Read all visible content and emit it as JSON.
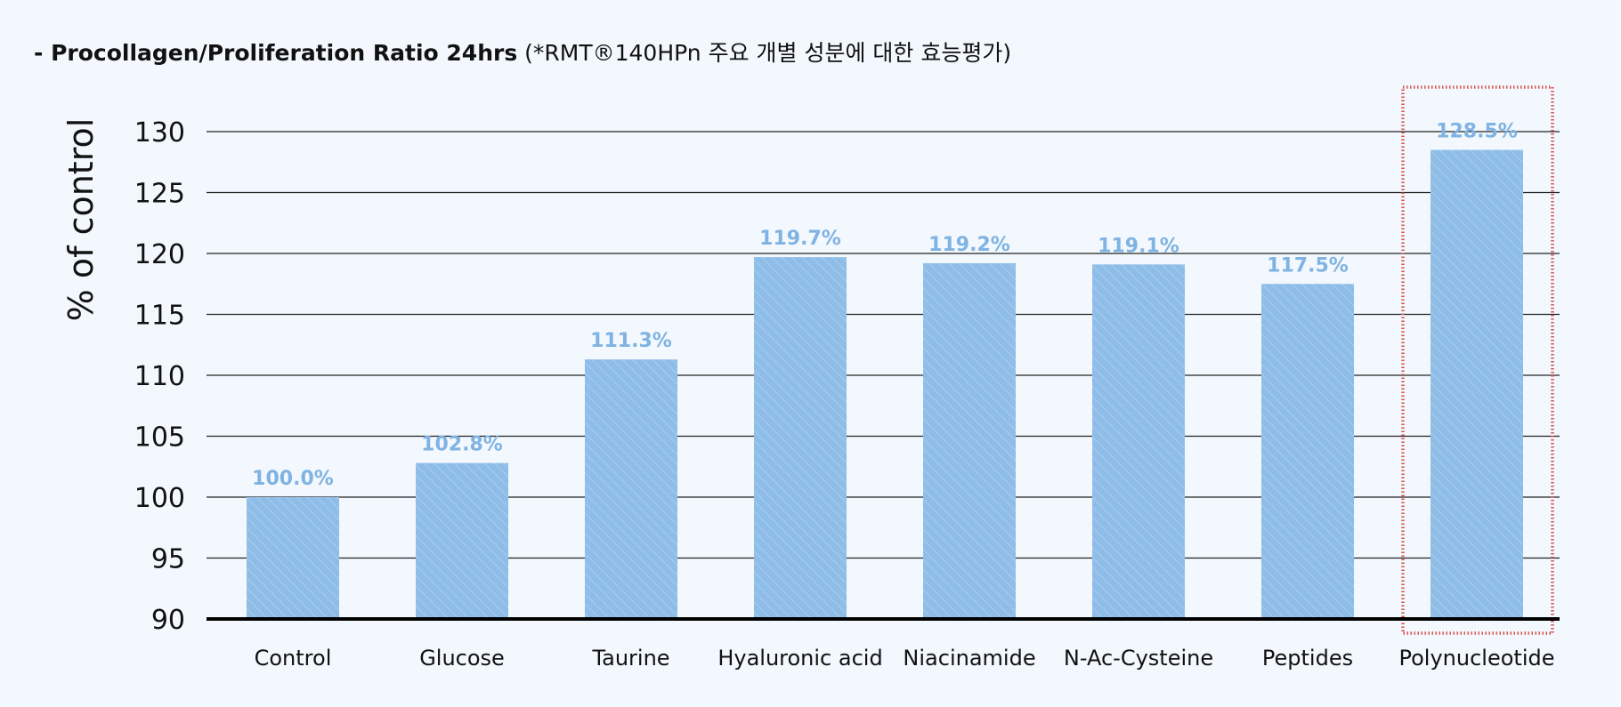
{
  "title": {
    "bold": "- Procollagen/Proliferation Ratio 24hrs",
    "normal": "(*RMT®140HPn 주요 개별 성분에 대한 효능평가)"
  },
  "colors": {
    "bar": "#8ebde8",
    "bar_stripe": "#a9cdee",
    "value_label": "#7fb3e3",
    "grid": "#222222",
    "axis": "#000000",
    "highlight": "#d9534f",
    "background": "#f2f8fd"
  },
  "chart_data": {
    "type": "bar",
    "title": "- Procollagen/Proliferation Ratio 24hrs (*RMT®140HPn 주요 개별 성분에 대한 효능평가)",
    "ylabel": "% of control",
    "xlabel": "",
    "ylim": [
      90,
      130
    ],
    "yticks": [
      90,
      95,
      100,
      105,
      110,
      115,
      120,
      125,
      130
    ],
    "grid": true,
    "categories": [
      "Control",
      "Glucose",
      "Taurine",
      "Hyaluronic acid",
      "Niacinamide",
      "N-Ac-Cysteine",
      "Peptides",
      "Polynucleotide"
    ],
    "values": [
      100.0,
      102.8,
      111.3,
      119.7,
      119.2,
      119.1,
      117.5,
      128.5
    ],
    "value_labels": [
      "100.0%",
      "102.8%",
      "111.3%",
      "119.7%",
      "119.2%",
      "119.1%",
      "117.5%",
      "128.5%"
    ],
    "highlighted_category": "Polynucleotide"
  }
}
